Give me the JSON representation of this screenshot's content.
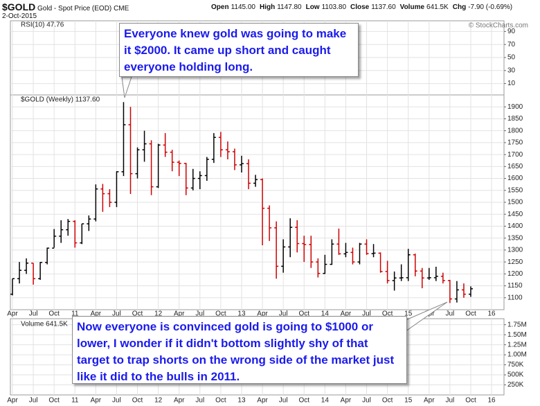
{
  "header": {
    "symbol": "$GOLD",
    "name": "Gold - Spot Price (EOD)",
    "exchange": "CME",
    "date": "2-Oct-2015",
    "quote": [
      {
        "label": "Open",
        "value": "1145.00"
      },
      {
        "label": "High",
        "value": "1147.80"
      },
      {
        "label": "Low",
        "value": "1103.80"
      },
      {
        "label": "Close",
        "value": "1137.60"
      },
      {
        "label": "Volume",
        "value": "641.5K"
      },
      {
        "label": "Chg",
        "value": "-7.90 (-0.69%)"
      }
    ],
    "credit": "© StockCharts.com"
  },
  "chart_data": {
    "type": "ohlc",
    "legend_label": "$GOLD (Weekly) 1137.60",
    "categories": [
      "Apr",
      null,
      null,
      "Jul",
      null,
      null,
      "Oct",
      null,
      null,
      "11",
      null,
      null,
      "Apr",
      null,
      null,
      "Jul",
      null,
      null,
      "Oct",
      null,
      null,
      "12",
      null,
      null,
      "Apr",
      null,
      null,
      "Jul",
      null,
      null,
      "Oct",
      null,
      null,
      "13",
      null,
      null,
      "Apr",
      null,
      null,
      "Jul",
      null,
      null,
      "Oct",
      null,
      null,
      "14",
      null,
      null,
      "Apr",
      null,
      null,
      "Jul",
      null,
      null,
      "Oct",
      null,
      null,
      "15",
      null,
      null,
      "Apr",
      null,
      null,
      "Jul",
      null,
      null,
      "Oct",
      null,
      null,
      "16"
    ],
    "open": [
      1115,
      1180,
      1215,
      1245,
      1180,
      1248,
      1308,
      1358,
      1385,
      1420,
      1330,
      1410,
      1430,
      1556,
      1536,
      1500,
      1628,
      1825,
      1620,
      1720,
      1745,
      1565,
      1740,
      1710,
      1668,
      1663,
      1560,
      1600,
      1612,
      1680,
      1772,
      1720,
      1712,
      1657,
      1662,
      1580,
      1595,
      1475,
      1393,
      1232,
      1313,
      1395,
      1327,
      1323,
      1250,
      1202,
      1240,
      1325,
      1284,
      1290,
      1250,
      1325,
      1285,
      1287,
      1210,
      1172,
      1183,
      1184,
      1280,
      1212,
      1183,
      1184,
      1190,
      1172,
      1095,
      1133,
      1115,
      null,
      null,
      null
    ],
    "high": [
      1180,
      1250,
      1265,
      1245,
      1250,
      1310,
      1388,
      1425,
      1430,
      1425,
      1410,
      1445,
      1575,
      1577,
      1555,
      1630,
      1920,
      1900,
      1730,
      1800,
      1760,
      1745,
      1790,
      1720,
      1675,
      1665,
      1640,
      1630,
      1690,
      1790,
      1795,
      1755,
      1725,
      1695,
      1680,
      1615,
      1600,
      1487,
      1420,
      1345,
      1433,
      1425,
      1360,
      1360,
      1265,
      1280,
      1345,
      1390,
      1330,
      1310,
      1330,
      1345,
      1325,
      1290,
      1255,
      1210,
      1240,
      1305,
      1285,
      1225,
      1225,
      1230,
      1205,
      1175,
      1170,
      1160,
      1147.8,
      null,
      null,
      null
    ],
    "low": [
      1110,
      1160,
      1200,
      1155,
      1175,
      1240,
      1310,
      1330,
      1360,
      1310,
      1325,
      1380,
      1420,
      1460,
      1480,
      1480,
      1610,
      1535,
      1600,
      1670,
      1530,
      1560,
      1690,
      1630,
      1610,
      1530,
      1550,
      1555,
      1590,
      1665,
      1690,
      1680,
      1635,
      1625,
      1555,
      1565,
      1320,
      1338,
      1180,
      1205,
      1270,
      1290,
      1250,
      1225,
      1185,
      1200,
      1238,
      1280,
      1270,
      1240,
      1240,
      1280,
      1270,
      1205,
      1160,
      1130,
      1170,
      1170,
      1190,
      1140,
      1175,
      1170,
      1160,
      1078,
      1080,
      1100,
      1103.8,
      null,
      null,
      null
    ],
    "close": [
      1180,
      1215,
      1245,
      1180,
      1248,
      1308,
      1358,
      1385,
      1420,
      1330,
      1410,
      1430,
      1556,
      1536,
      1500,
      1628,
      1825,
      1620,
      1720,
      1745,
      1565,
      1740,
      1710,
      1668,
      1663,
      1560,
      1600,
      1612,
      1680,
      1772,
      1720,
      1712,
      1657,
      1662,
      1580,
      1595,
      1475,
      1393,
      1232,
      1313,
      1395,
      1327,
      1323,
      1250,
      1202,
      1240,
      1325,
      1284,
      1290,
      1250,
      1325,
      1285,
      1287,
      1210,
      1172,
      1183,
      1184,
      1280,
      1212,
      1183,
      1184,
      1190,
      1172,
      1095,
      1133,
      1115,
      1137.6,
      null,
      null,
      null
    ],
    "up_color": "#000000",
    "down_color": "#cc0000",
    "ylim": [
      1050,
      1950
    ],
    "yticks": [
      1100,
      1150,
      1200,
      1250,
      1300,
      1350,
      1400,
      1450,
      1500,
      1550,
      1600,
      1650,
      1700,
      1750,
      1800,
      1850,
      1900
    ],
    "grid": true,
    "rsi": {
      "label": "RSI(10) 47.76",
      "ylim": [
        0,
        100
      ],
      "yticks": [
        10,
        30,
        50,
        70,
        90
      ]
    },
    "volume": {
      "label": "Volume 641.5K",
      "ylim": [
        0,
        1900000
      ],
      "yticks": [
        {
          "value": 250000,
          "label": "250K"
        },
        {
          "value": 500000,
          "label": "500K"
        },
        {
          "value": 750000,
          "label": "750K"
        },
        {
          "value": 1000000,
          "label": "1.00M"
        },
        {
          "value": 1250000,
          "label": "1.25M"
        },
        {
          "value": 1500000,
          "label": "1.50M"
        },
        {
          "value": 1750000,
          "label": "1.75M"
        }
      ]
    },
    "annotations": [
      {
        "text": "Everyone knew gold was going to make it $2000. It came up short and caught everyone holding long."
      },
      {
        "text": "Now everyone is convinced gold is going to $1000 or lower, I wonder if it didn't bottom slightly shy of that target to trap shorts on the wrong side of the market just like it did to the bulls in 2011."
      }
    ]
  }
}
